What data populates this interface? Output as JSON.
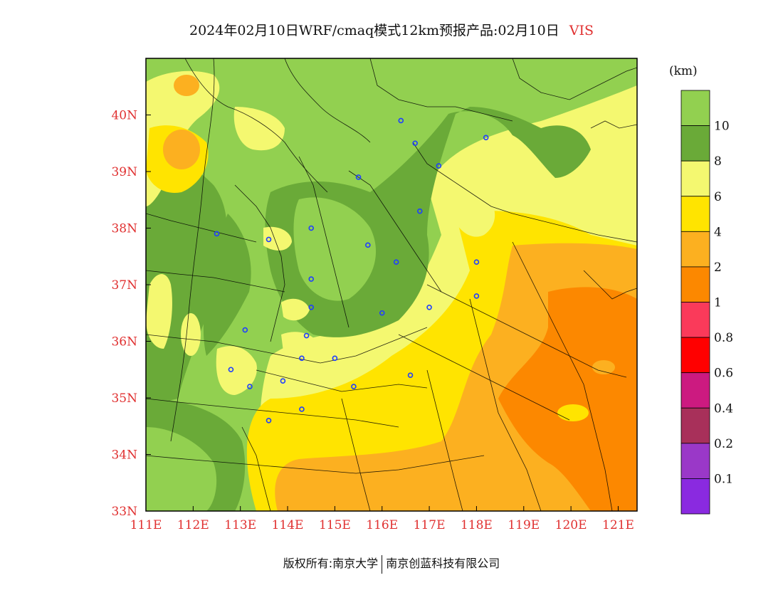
{
  "title": {
    "main": "2024年02月10日WRF/cmaq模式12km预报产品:02月10日",
    "variable": "VIS"
  },
  "axes": {
    "lon_labels": [
      "111E",
      "112E",
      "113E",
      "114E",
      "115E",
      "116E",
      "117E",
      "118E",
      "119E",
      "120E",
      "121E"
    ],
    "lat_labels": [
      "40N",
      "39N",
      "38N",
      "37N",
      "36N",
      "35N",
      "34N",
      "33N"
    ],
    "lon_range": [
      111,
      121.4
    ],
    "lat_range": [
      33,
      41
    ]
  },
  "colorbar": {
    "unit": "(km)",
    "bins": [
      {
        "color": "#92d050"
      },
      {
        "color": "#6aaa38"
      },
      {
        "color": "#f4f870"
      },
      {
        "color": "#ffe400"
      },
      {
        "color": "#fcb020"
      },
      {
        "color": "#fc8800"
      },
      {
        "color": "#fa3a5a"
      },
      {
        "color": "#ff0000"
      },
      {
        "color": "#cc1a80"
      },
      {
        "color": "#a8305a"
      },
      {
        "color": "#9a38c8"
      },
      {
        "color": "#8a2ae0"
      }
    ],
    "labels": [
      "10",
      "8",
      "6",
      "4",
      "2",
      "1",
      "0.8",
      "0.6",
      "0.4",
      "0.2",
      "0.1"
    ]
  },
  "stations": [
    {
      "lon": 116.4,
      "lat": 39.9
    },
    {
      "lon": 117.2,
      "lat": 39.1
    },
    {
      "lon": 118.2,
      "lat": 39.6
    },
    {
      "lon": 116.7,
      "lat": 39.5
    },
    {
      "lon": 115.5,
      "lat": 38.9
    },
    {
      "lon": 114.5,
      "lat": 38.0
    },
    {
      "lon": 116.8,
      "lat": 38.3
    },
    {
      "lon": 112.5,
      "lat": 37.9
    },
    {
      "lon": 113.6,
      "lat": 37.8
    },
    {
      "lon": 115.7,
      "lat": 37.7
    },
    {
      "lon": 116.3,
      "lat": 37.4
    },
    {
      "lon": 114.5,
      "lat": 37.1
    },
    {
      "lon": 114.5,
      "lat": 36.6
    },
    {
      "lon": 116.0,
      "lat": 36.5
    },
    {
      "lon": 117.0,
      "lat": 36.6
    },
    {
      "lon": 118.0,
      "lat": 37.4
    },
    {
      "lon": 118.0,
      "lat": 36.8
    },
    {
      "lon": 113.1,
      "lat": 36.2
    },
    {
      "lon": 114.4,
      "lat": 36.1
    },
    {
      "lon": 114.3,
      "lat": 35.7
    },
    {
      "lon": 115.0,
      "lat": 35.7
    },
    {
      "lon": 112.8,
      "lat": 35.5
    },
    {
      "lon": 113.2,
      "lat": 35.2
    },
    {
      "lon": 113.9,
      "lat": 35.3
    },
    {
      "lon": 115.4,
      "lat": 35.2
    },
    {
      "lon": 116.6,
      "lat": 35.4
    },
    {
      "lon": 114.3,
      "lat": 34.8
    },
    {
      "lon": 113.6,
      "lat": 34.6
    }
  ],
  "copyright": {
    "left": "版权所有:南京大学",
    "right": "南京创蓝科技有限公司"
  }
}
